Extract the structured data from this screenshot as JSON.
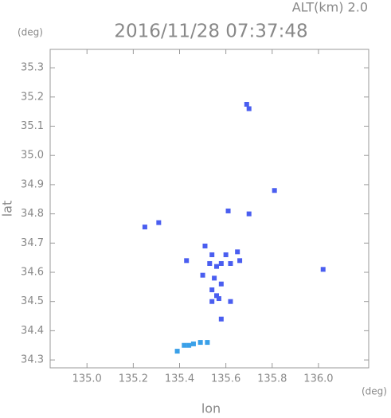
{
  "chart_data": {
    "type": "scatter",
    "title": "2016/11/28 07:37:48",
    "subtitle": "ALT(km) 2.0",
    "x_label": "lon",
    "y_label": "lat",
    "x_unit": "(deg)",
    "y_unit": "(deg)",
    "xlim": [
      134.841,
      136.217
    ],
    "ylim": [
      34.273,
      35.363
    ],
    "xticks": [
      {
        "value": 135.0,
        "label": "135.0"
      },
      135.2,
      135.4,
      135.6,
      135.8,
      {
        "value": 136.0,
        "label": "136.0"
      }
    ],
    "yticks": [
      34.3,
      34.4,
      34.5,
      34.6,
      34.7,
      34.8,
      34.9,
      {
        "value": 35.0,
        "label": "35.0"
      },
      35.1,
      35.2,
      35.3
    ],
    "series": [
      {
        "color": "#4a5ef0",
        "x": [
          135.69,
          135.7,
          135.81,
          135.25,
          135.31,
          135.61,
          135.7,
          135.51,
          135.54,
          135.43,
          135.53,
          135.6,
          135.56,
          135.58,
          135.65,
          135.66,
          135.62,
          135.55,
          135.58,
          135.54,
          135.56,
          135.54,
          135.57,
          135.62,
          135.58,
          136.02,
          135.5
        ],
        "y": [
          35.175,
          35.16,
          34.88,
          34.755,
          34.77,
          34.81,
          34.8,
          34.69,
          34.66,
          34.64,
          34.63,
          34.66,
          34.62,
          34.63,
          34.67,
          34.64,
          34.63,
          34.58,
          34.56,
          34.54,
          34.52,
          34.5,
          34.51,
          34.5,
          34.44,
          34.61,
          34.59
        ]
      },
      {
        "color": "#3aa0e8",
        "x": [
          135.39,
          135.42,
          135.44,
          135.46,
          135.49,
          135.52
        ],
        "y": [
          34.33,
          34.35,
          34.35,
          34.355,
          34.36,
          34.36
        ]
      }
    ]
  }
}
